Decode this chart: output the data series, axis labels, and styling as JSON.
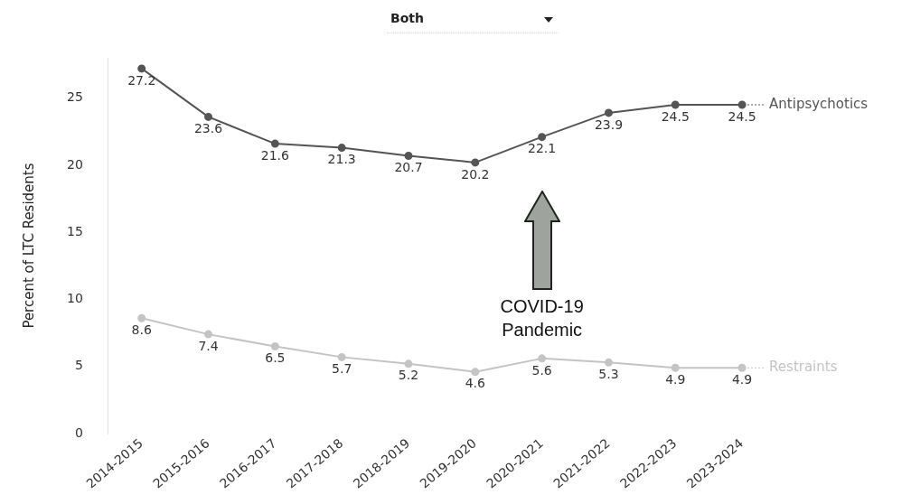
{
  "chart_data": {
    "type": "line",
    "ylabel": "Percent of LTC Residents",
    "categories": [
      "2014-2015",
      "2015-2016",
      "2016-2017",
      "2017-2018",
      "2018-2019",
      "2019-2020",
      "2020-2021",
      "2021-2022",
      "2022-2023",
      "2023-2024"
    ],
    "series": [
      {
        "name": "Antipsychotics",
        "color": "#555555",
        "values": [
          27.2,
          23.6,
          21.6,
          21.3,
          20.7,
          20.2,
          22.1,
          23.9,
          24.5,
          24.5
        ]
      },
      {
        "name": "Restraints",
        "color": "#c4c4c4",
        "values": [
          8.6,
          7.4,
          6.5,
          5.7,
          5.2,
          4.6,
          5.6,
          5.3,
          4.9,
          4.9
        ]
      }
    ],
    "ylim": [
      0,
      28
    ],
    "yticks": [
      0,
      5,
      10,
      15,
      20,
      25
    ],
    "grid": false,
    "legend": false,
    "marker": "circle",
    "line_style": "solid",
    "data_labels": true,
    "annotations": [
      "Both",
      "COVID-19 Pandemic"
    ]
  }
}
